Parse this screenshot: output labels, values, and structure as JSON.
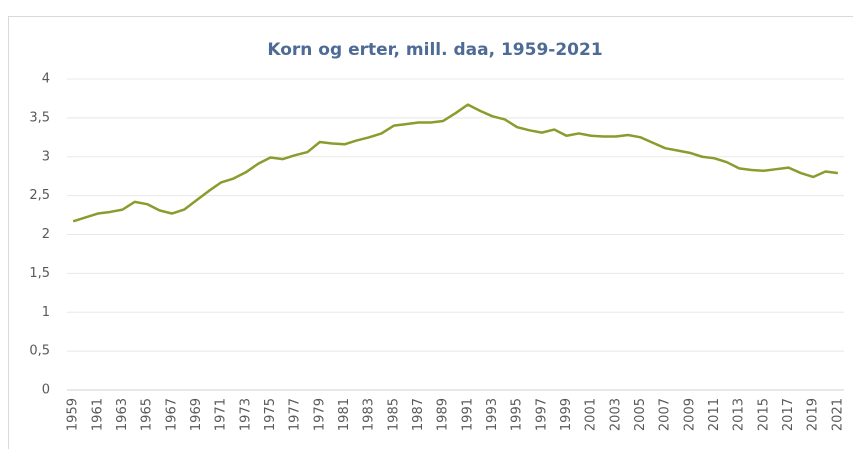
{
  "chart_data": {
    "type": "line",
    "title": "Korn og erter, mill. daa, 1959-2021",
    "x": [
      1959,
      1960,
      1961,
      1962,
      1963,
      1964,
      1965,
      1966,
      1967,
      1968,
      1969,
      1970,
      1971,
      1972,
      1973,
      1974,
      1975,
      1976,
      1977,
      1978,
      1979,
      1980,
      1981,
      1982,
      1983,
      1984,
      1985,
      1986,
      1987,
      1988,
      1989,
      1990,
      1991,
      1992,
      1993,
      1994,
      1995,
      1996,
      1997,
      1998,
      1999,
      2000,
      2001,
      2002,
      2003,
      2004,
      2005,
      2006,
      2007,
      2008,
      2009,
      2010,
      2011,
      2012,
      2013,
      2014,
      2015,
      2016,
      2017,
      2018,
      2019,
      2020,
      2021
    ],
    "series": [
      {
        "color": "#8c9b2d",
        "values": [
          2.17,
          2.22,
          2.27,
          2.29,
          2.32,
          2.42,
          2.39,
          2.31,
          2.27,
          2.32,
          2.44,
          2.56,
          2.67,
          2.72,
          2.8,
          2.91,
          2.99,
          2.97,
          3.02,
          3.06,
          3.19,
          3.17,
          3.16,
          3.21,
          3.25,
          3.3,
          3.4,
          3.42,
          3.44,
          3.44,
          3.46,
          3.56,
          3.67,
          3.59,
          3.52,
          3.48,
          3.38,
          3.34,
          3.31,
          3.35,
          3.27,
          3.3,
          3.27,
          3.26,
          3.26,
          3.28,
          3.25,
          3.18,
          3.11,
          3.08,
          3.05,
          3.0,
          2.98,
          2.93,
          2.85,
          2.83,
          2.82,
          2.84,
          2.86,
          2.79,
          2.74,
          2.81,
          2.79
        ]
      }
    ],
    "xlim": [
      1958.5,
      2021.5
    ],
    "xticks": [
      1959,
      1961,
      1963,
      1965,
      1967,
      1969,
      1971,
      1973,
      1975,
      1977,
      1979,
      1981,
      1983,
      1985,
      1987,
      1989,
      1991,
      1993,
      1995,
      1997,
      1999,
      2001,
      2003,
      2005,
      2007,
      2009,
      2011,
      2013,
      2015,
      2017,
      2019,
      2021
    ],
    "ylim": [
      0,
      4
    ],
    "yticks": [
      0,
      {
        "value": 0.5,
        "label": "0,5"
      },
      1,
      {
        "value": 1.5,
        "label": "1,5"
      },
      2,
      {
        "value": 2.5,
        "label": "2,5"
      },
      3,
      {
        "value": 3.5,
        "label": "3,5"
      },
      4
    ],
    "grid": true
  }
}
